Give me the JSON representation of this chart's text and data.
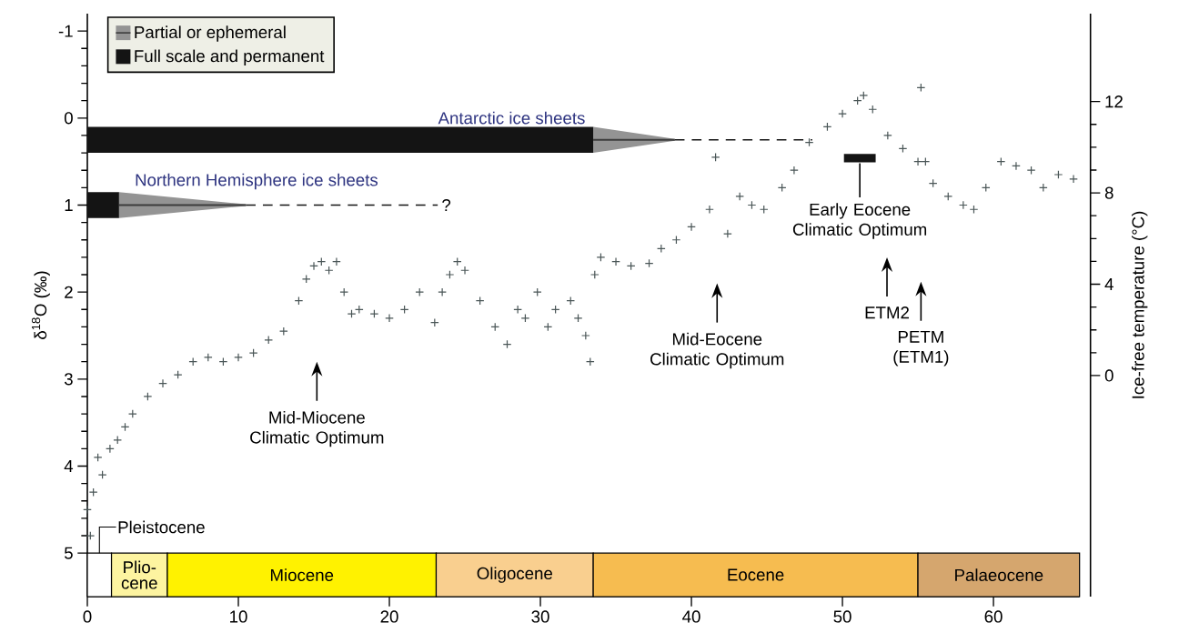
{
  "chart_data": {
    "type": "scatter",
    "ylabel": "δ$^{18}$O (‰)",
    "y2label": "Ice-free temperature (°C)",
    "xlim": [
      0,
      65.7
    ],
    "xticks": [
      0,
      10,
      20,
      30,
      40,
      50,
      60
    ],
    "ylim": [
      5.5,
      -1.2
    ],
    "yticks": [
      -1,
      0,
      1,
      2,
      3,
      4,
      5
    ],
    "y2lim": [
      -9.68,
      15.85
    ],
    "y2ticks": [
      0,
      4,
      8,
      12
    ],
    "legend": "top left",
    "series": [
      {
        "color": "#4a5657",
        "marker": "cross",
        "x": [
          0,
          0.2,
          0.4,
          0.7,
          1,
          1.5,
          2,
          2.5,
          3,
          4,
          5,
          6,
          7,
          8,
          9,
          10,
          11,
          12,
          13,
          14,
          14.5,
          15,
          15.5,
          16,
          16.5,
          17,
          17.5,
          18,
          19,
          20,
          21,
          22,
          23,
          23.5,
          24,
          24.5,
          25,
          26,
          27,
          27.8,
          28.5,
          29,
          29.8,
          30.5,
          31,
          32,
          32.5,
          33,
          33.3,
          33.6,
          34,
          35,
          36,
          37.2,
          38,
          39,
          40,
          41.2,
          41.6,
          42.4,
          43.2,
          44,
          44.8,
          46,
          46.8,
          47.8,
          49,
          50,
          51,
          51.4,
          52,
          53,
          54,
          55,
          55.2,
          55.5,
          56,
          57,
          58,
          58.7,
          59.5,
          60.5,
          61.5,
          62.5,
          63.3,
          64.3,
          65.3
        ],
        "values": [
          4.5,
          4.8,
          4.3,
          3.9,
          4.1,
          3.8,
          3.7,
          3.55,
          3.4,
          3.2,
          3.05,
          2.95,
          2.8,
          2.75,
          2.8,
          2.75,
          2.7,
          2.55,
          2.45,
          2.1,
          1.85,
          1.7,
          1.65,
          1.75,
          1.65,
          2.0,
          2.25,
          2.2,
          2.25,
          2.3,
          2.2,
          2.0,
          2.35,
          2.0,
          1.8,
          1.65,
          1.75,
          2.1,
          2.4,
          2.6,
          2.2,
          2.3,
          2.0,
          2.4,
          2.2,
          2.1,
          2.3,
          2.5,
          2.8,
          1.8,
          1.6,
          1.65,
          1.7,
          1.67,
          1.5,
          1.4,
          1.25,
          1.05,
          0.45,
          1.33,
          0.9,
          1.0,
          1.05,
          0.8,
          0.6,
          0.28,
          0.1,
          -0.05,
          -0.2,
          -0.26,
          -0.1,
          0.2,
          0.35,
          0.5,
          -0.35,
          0.5,
          0.75,
          0.9,
          1.0,
          1.05,
          0.8,
          0.5,
          0.55,
          0.6,
          0.8,
          0.65,
          0.7
        ]
      },
      {
        "type": "line",
        "name": "Partial or ephemeral",
        "color": "#3c3c3c",
        "x": [
          33.5,
          38.9
        ],
        "values": [
          0.25,
          0.25
        ],
        "lower": [
          0.1,
          0.24
        ],
        "upper": [
          0.4,
          0.26
        ]
      },
      {
        "type": "line",
        "color": "#3c3c3c",
        "x": [
          2.1,
          10.5
        ],
        "values": [
          1,
          1
        ],
        "lower": [
          0.85,
          0.99
        ],
        "upper": [
          1.15,
          1.01
        ]
      },
      {
        "type": "line",
        "name": "Full scale and permanent",
        "color": "#141414",
        "x": [
          0,
          33.5
        ],
        "values": [
          0.25,
          0.25
        ]
      },
      {
        "type": "line",
        "color": "#141414",
        "x": [
          0,
          2.1
        ],
        "values": [
          1,
          1
        ]
      },
      {
        "type": "line",
        "color": "#141414",
        "line_style": "dashed",
        "x": [
          38.9,
          48
        ],
        "values": [
          0.25,
          0.25
        ]
      },
      {
        "type": "line",
        "color": "#141414",
        "line_style": "dashed",
        "x": [
          10.5,
          23.2
        ],
        "values": [
          1,
          1
        ]
      },
      {
        "type": "line",
        "color": "#141414",
        "x": [
          50.1,
          52.2
        ],
        "values": [
          0.46,
          0.46
        ]
      }
    ],
    "bands": [
      {
        "axis": "x",
        "from": 0,
        "to": 1.6,
        "label": "Pleistocene",
        "color": "#ffffff"
      },
      {
        "axis": "x",
        "from": 1.6,
        "to": 5.3,
        "label": "Plio-cene",
        "color": "#fdf4a0"
      },
      {
        "axis": "x",
        "from": 5.3,
        "to": 23.1,
        "label": "Miocene",
        "color": "#fff200"
      },
      {
        "axis": "x",
        "from": 23.1,
        "to": 33.5,
        "label": "Oligocene",
        "color": "#f9cf8f"
      },
      {
        "axis": "x",
        "from": 33.5,
        "to": 55,
        "label": "Eocene",
        "color": "#f6bc50"
      },
      {
        "axis": "x",
        "from": 55,
        "to": 65.7,
        "label": "Palaeocene",
        "color": "#d5a66e"
      }
    ],
    "annotations": [
      {
        "text": "Antarctic ice sheets",
        "x": 28.1,
        "y": 0.25
      },
      {
        "text": "Northern Hemisphere ice sheets",
        "x": 11.2,
        "y": 1
      },
      {
        "text": "?",
        "x": 23.2,
        "y": 1
      },
      "Mid-Miocene Climatic Optimum",
      "Mid-Eocene Climatic Optimum",
      {
        "text": "Early Eocene Climatic Optimum",
        "x": 51.15,
        "y": 0.46
      },
      "ETM2",
      "PETM (ETM1)"
    ]
  }
}
